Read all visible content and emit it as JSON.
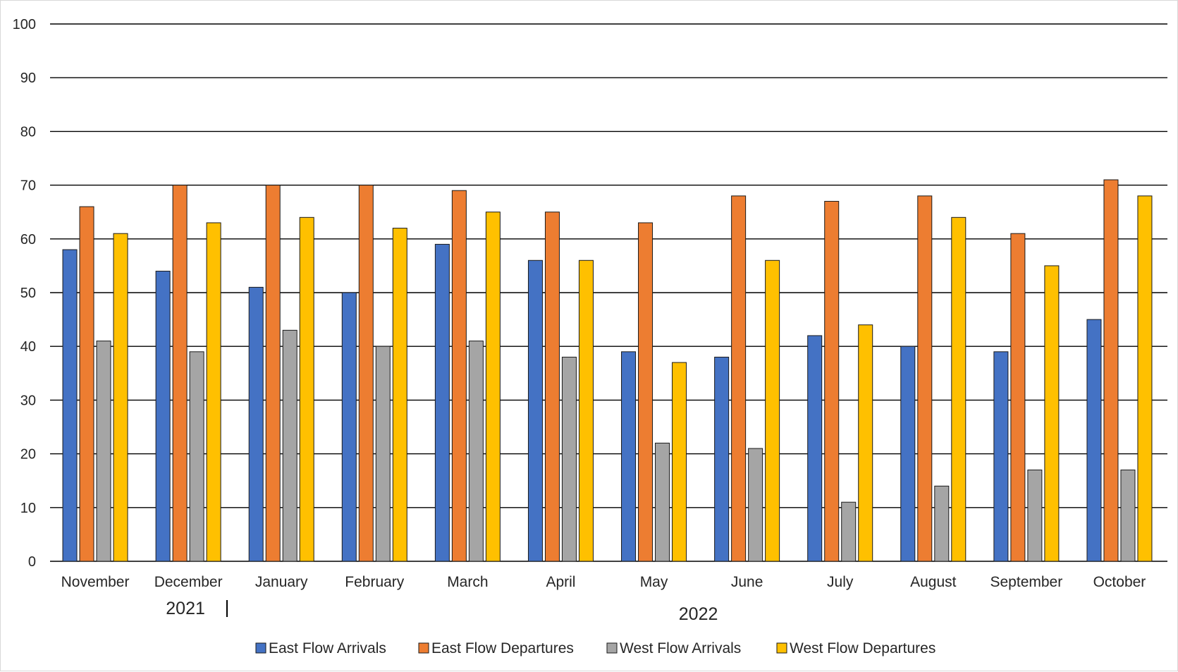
{
  "chart_data": {
    "type": "bar",
    "title": "",
    "xlabel": "",
    "ylabel": "",
    "ylim": [
      0,
      100
    ],
    "yticks": [
      0,
      10,
      20,
      30,
      40,
      50,
      60,
      70,
      80,
      90,
      100
    ],
    "grid": true,
    "legend_position": "bottom",
    "categories": [
      "November",
      "December",
      "January",
      "February",
      "March",
      "April",
      "May",
      "June",
      "July",
      "August",
      "September",
      "October"
    ],
    "year_groups": [
      {
        "label": "2021",
        "categories": [
          "November",
          "December"
        ]
      },
      {
        "label": "2022",
        "categories": [
          "January",
          "February",
          "March",
          "April",
          "May",
          "June",
          "July",
          "August",
          "September",
          "October"
        ]
      }
    ],
    "series": [
      {
        "name": "East Flow Arrivals",
        "color": "#4472c4",
        "values": [
          58,
          54,
          51,
          50,
          59,
          56,
          39,
          38,
          42,
          40,
          39,
          45
        ]
      },
      {
        "name": "East Flow Departures",
        "color": "#ed7d31",
        "values": [
          66,
          70,
          70,
          70,
          69,
          65,
          63,
          68,
          67,
          68,
          61,
          71
        ]
      },
      {
        "name": "West Flow Arrivals",
        "color": "#a5a5a5",
        "values": [
          41,
          39,
          43,
          40,
          41,
          38,
          22,
          21,
          11,
          14,
          17,
          17
        ]
      },
      {
        "name": "West Flow Departures",
        "color": "#ffc000",
        "values": [
          61,
          63,
          64,
          62,
          65,
          56,
          37,
          56,
          44,
          64,
          55,
          68
        ]
      }
    ]
  }
}
